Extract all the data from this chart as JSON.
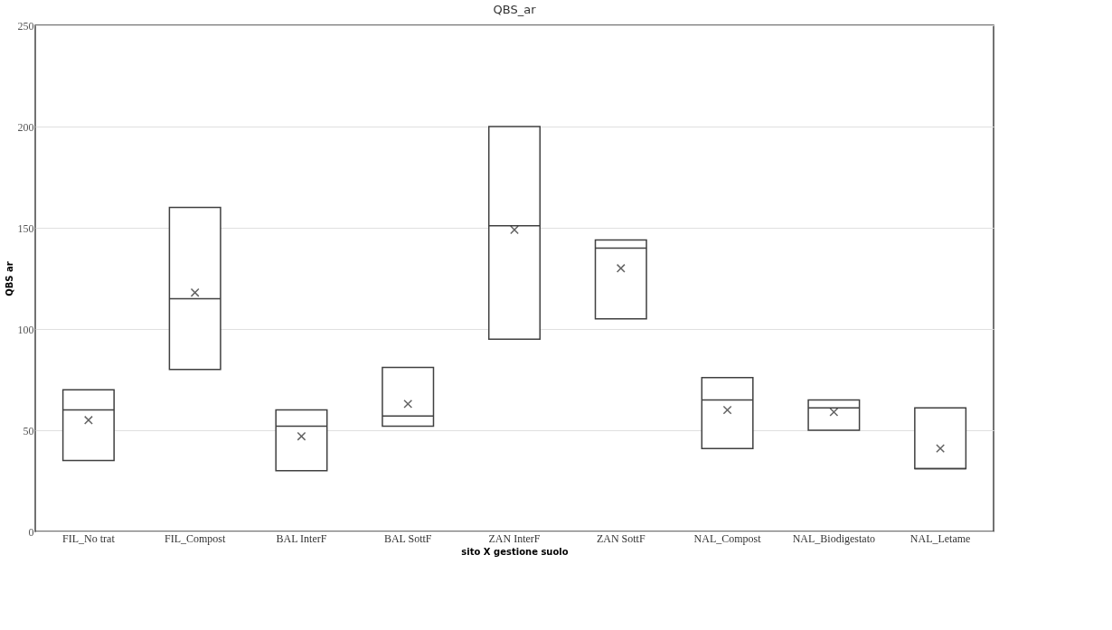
{
  "chart_data": {
    "type": "box",
    "title": "QBS_ar",
    "xlabel": "sito X gestione suolo",
    "ylabel": "QBS ar",
    "categories": [
      "FIL_No trat",
      "FIL_Compost",
      "BAL InterF",
      "BAL SottF",
      "ZAN InterF",
      "ZAN SottF",
      "NAL_Compost",
      "NAL_Biodigestato",
      "NAL_Letame"
    ],
    "series": [
      {
        "color": "#404040",
        "boxes": [
          {
            "low": 35,
            "q1": 35,
            "median": 60,
            "q3": 70,
            "high": 70,
            "mean": 55
          },
          {
            "low": 80,
            "q1": 80,
            "median": 115,
            "q3": 160,
            "high": 160,
            "mean": 118
          },
          {
            "low": 30,
            "q1": 30,
            "median": 52,
            "q3": 60,
            "high": 60,
            "mean": 47
          },
          {
            "low": 52,
            "q1": 52,
            "median": 57,
            "q3": 81,
            "high": 81,
            "mean": 63
          },
          {
            "low": 95,
            "q1": 95,
            "median": 151,
            "q3": 200,
            "high": 200,
            "mean": 149
          },
          {
            "low": 105,
            "q1": 105,
            "median": 140,
            "q3": 144,
            "high": 144,
            "mean": 130
          },
          {
            "low": 41,
            "q1": 41,
            "median": 65,
            "q3": 76,
            "high": 76,
            "mean": 60
          },
          {
            "low": 50,
            "q1": 50,
            "median": 61,
            "q3": 65,
            "high": 65,
            "mean": 59
          },
          {
            "low": 31,
            "q1": 31,
            "median": 31,
            "q3": 61,
            "high": 61,
            "mean": 41
          }
        ]
      }
    ],
    "ylim": [
      0,
      250
    ],
    "yticks": [
      0,
      50,
      100,
      150,
      200,
      250
    ],
    "grid": "y",
    "marker": "cross"
  }
}
